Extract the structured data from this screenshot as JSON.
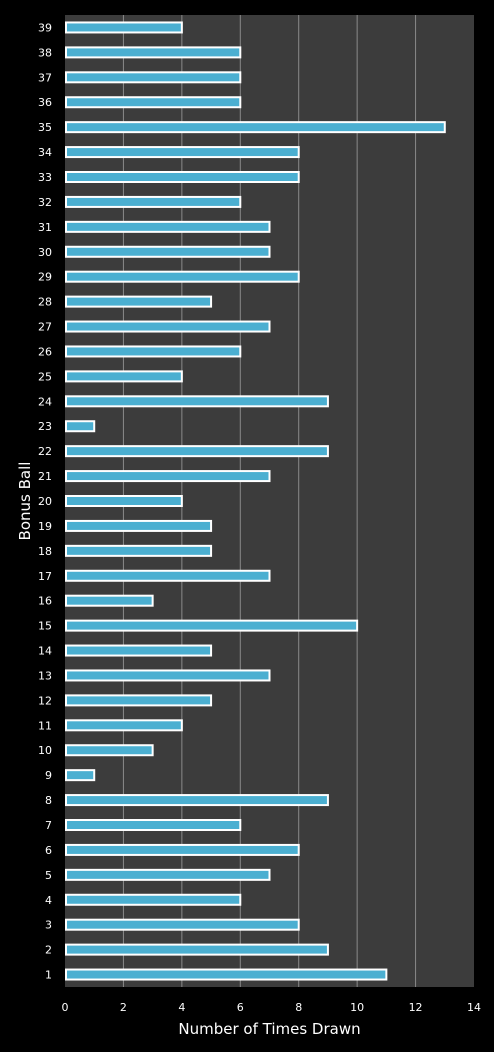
{
  "chart_data": {
    "type": "bar",
    "orientation": "horizontal",
    "xlabel": "Number of Times Drawn",
    "ylabel": "Bonus Ball",
    "xlim": [
      0,
      14
    ],
    "xticks": [
      0,
      2,
      4,
      6,
      8,
      10,
      12,
      14
    ],
    "grid": "vertical",
    "categories": [
      "1",
      "2",
      "3",
      "4",
      "5",
      "6",
      "7",
      "8",
      "9",
      "10",
      "11",
      "12",
      "13",
      "14",
      "15",
      "16",
      "17",
      "18",
      "19",
      "20",
      "21",
      "22",
      "23",
      "24",
      "25",
      "26",
      "27",
      "28",
      "29",
      "30",
      "31",
      "32",
      "33",
      "34",
      "35",
      "36",
      "37",
      "38",
      "39"
    ],
    "values": [
      11,
      9,
      8,
      6,
      7,
      8,
      6,
      9,
      1,
      3,
      4,
      5,
      7,
      5,
      10,
      3,
      7,
      5,
      5,
      4,
      7,
      9,
      1,
      9,
      4,
      6,
      7,
      5,
      8,
      7,
      7,
      6,
      8,
      8,
      13,
      6,
      6,
      6,
      4
    ],
    "colors": {
      "background": "#000000",
      "plot_area": "#3c3c3c",
      "bar_fill": "#4bafd1",
      "bar_border": "#ffffff",
      "gridline": "#8a8a8a",
      "text": "#ffffff"
    }
  }
}
